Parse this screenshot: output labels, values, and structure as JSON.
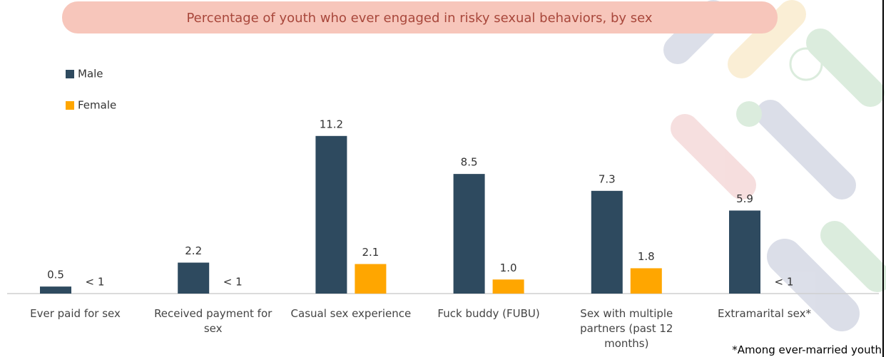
{
  "chart_data": {
    "type": "bar",
    "title": "Percentage of youth who ever engaged in risky sexual behaviors, by sex",
    "categories": [
      "Ever paid for sex",
      "Received payment for sex",
      "Casual sex experience",
      "Fuck buddy (FUBU)",
      "Sex with multiple partners (past 12 months)",
      "Extramarital sex*"
    ],
    "series": [
      {
        "name": "Male",
        "color": "#2e4a5f",
        "values": [
          0.5,
          2.2,
          11.2,
          8.5,
          7.3,
          5.9
        ]
      },
      {
        "name": "Female",
        "color": "#ffa600",
        "values": [
          null,
          null,
          2.1,
          1.0,
          1.8,
          null
        ],
        "value_labels": [
          "< 1",
          "< 1",
          "2.1",
          "1.0",
          "1.8",
          "< 1"
        ]
      }
    ],
    "ylim": [
      0,
      12
    ],
    "legend": "top-left",
    "note": "*Among ever-married youth"
  }
}
